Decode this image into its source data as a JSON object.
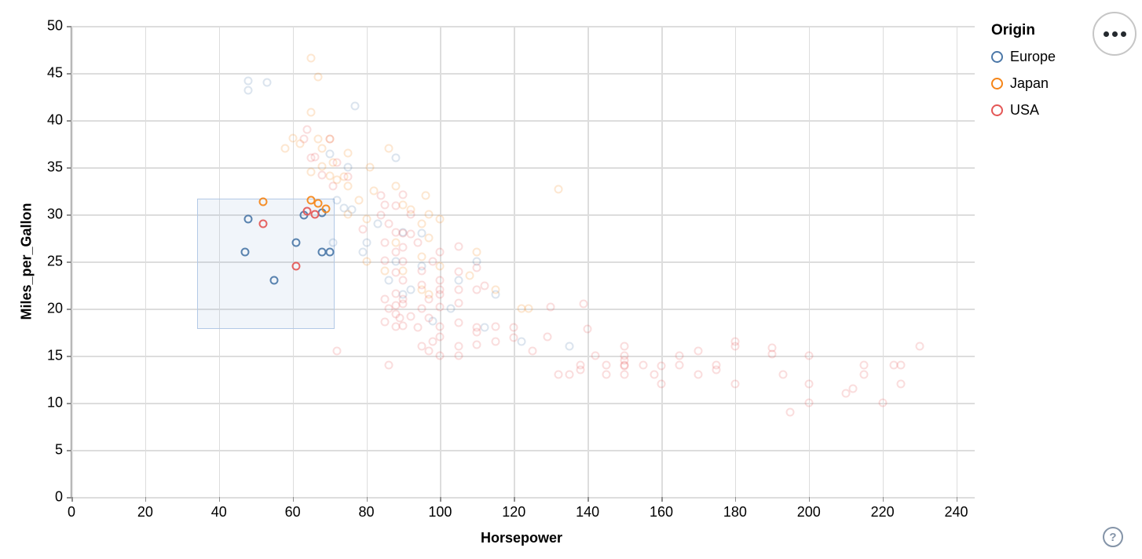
{
  "help_button": {
    "glyph": "?"
  },
  "menu_button": {
    "icon": "ellipsis-icon"
  },
  "chart_data": {
    "type": "scatter",
    "xlabel": "Horsepower",
    "ylabel": "Miles_per_Gallon",
    "x_domain": [
      0,
      245
    ],
    "y_domain": [
      0,
      50
    ],
    "x_ticks": [
      0,
      20,
      40,
      60,
      80,
      100,
      120,
      140,
      160,
      180,
      200,
      220,
      240
    ],
    "y_ticks": [
      0,
      5,
      10,
      15,
      20,
      25,
      30,
      35,
      40,
      45,
      50
    ],
    "grid": true,
    "legend": {
      "title": "Origin",
      "position": "top-right",
      "entries": [
        {
          "label": "Europe",
          "color": "#4c78a8"
        },
        {
          "label": "Japan",
          "color": "#f58518"
        },
        {
          "label": "USA",
          "color": "#e45756"
        }
      ]
    },
    "brush": {
      "x": [
        34,
        71
      ],
      "y": [
        18,
        31.7
      ]
    },
    "point_style": {
      "opacity_selected": 0.92,
      "opacity_unselected": 0.2,
      "stroke_width": 2.6,
      "size": 12
    },
    "series": [
      {
        "name": "Europe",
        "color": "#4c78a8",
        "selected": [
          [
            48,
            29.5
          ],
          [
            47,
            26
          ],
          [
            61,
            27
          ],
          [
            68,
            26
          ],
          [
            70,
            26
          ],
          [
            55,
            23
          ],
          [
            63,
            29.9
          ],
          [
            68,
            30.2
          ]
        ],
        "unselected": [
          [
            48,
            44.2
          ],
          [
            53,
            44
          ],
          [
            48,
            43.2
          ],
          [
            77,
            41.5
          ],
          [
            70,
            36.4
          ],
          [
            88,
            36
          ],
          [
            75,
            35
          ],
          [
            72,
            31.5
          ],
          [
            74,
            30.7
          ],
          [
            76,
            30.5
          ],
          [
            83,
            29
          ],
          [
            90,
            28.1
          ],
          [
            95,
            28
          ],
          [
            88,
            25
          ],
          [
            95,
            24.5
          ],
          [
            110,
            25
          ],
          [
            105,
            23
          ],
          [
            90,
            21.5
          ],
          [
            115,
            21.5
          ],
          [
            112,
            18
          ],
          [
            122,
            16.5
          ],
          [
            135,
            16
          ],
          [
            103,
            20
          ],
          [
            98,
            18.7
          ],
          [
            80,
            27
          ],
          [
            79,
            26
          ],
          [
            71,
            27
          ],
          [
            86,
            23
          ],
          [
            92,
            22
          ]
        ]
      },
      {
        "name": "Japan",
        "color": "#f58518",
        "selected": [
          [
            52,
            31.3
          ],
          [
            65,
            31.5
          ],
          [
            67,
            31.2
          ],
          [
            69,
            30.6
          ]
        ],
        "unselected": [
          [
            65,
            46.6
          ],
          [
            67,
            44.6
          ],
          [
            65,
            40.8
          ],
          [
            60,
            38.1
          ],
          [
            62,
            37.5
          ],
          [
            58,
            37
          ],
          [
            67,
            38
          ],
          [
            68,
            37
          ],
          [
            70,
            38
          ],
          [
            75,
            36.5
          ],
          [
            71,
            35.5
          ],
          [
            68,
            35.1
          ],
          [
            65,
            34.5
          ],
          [
            70,
            34.1
          ],
          [
            72,
            33.7
          ],
          [
            74,
            34
          ],
          [
            88,
            33
          ],
          [
            75,
            33
          ],
          [
            96,
            32
          ],
          [
            90,
            31
          ],
          [
            92,
            30.5
          ],
          [
            97,
            30
          ],
          [
            75,
            30
          ],
          [
            80,
            29.5
          ],
          [
            95,
            29
          ],
          [
            100,
            29.5
          ],
          [
            97,
            27.5
          ],
          [
            88,
            27
          ],
          [
            110,
            26
          ],
          [
            95,
            25.5
          ],
          [
            100,
            24.5
          ],
          [
            108,
            23.5
          ],
          [
            95,
            22
          ],
          [
            97,
            21.5
          ],
          [
            115,
            22
          ],
          [
            122,
            20
          ],
          [
            124,
            20
          ],
          [
            132,
            32.7
          ],
          [
            90,
            24
          ],
          [
            85,
            24
          ],
          [
            80,
            25
          ],
          [
            78,
            31.5
          ],
          [
            82,
            32.5
          ],
          [
            86,
            37
          ],
          [
            81,
            35
          ]
        ]
      },
      {
        "name": "USA",
        "color": "#e45756",
        "selected": [
          [
            52,
            29
          ],
          [
            61,
            24.5
          ],
          [
            64,
            30.3
          ],
          [
            66,
            30
          ]
        ],
        "unselected": [
          [
            64,
            39
          ],
          [
            66,
            36.1
          ],
          [
            63,
            38
          ],
          [
            70,
            38
          ],
          [
            65,
            36
          ],
          [
            72,
            35.5
          ],
          [
            68,
            34.2
          ],
          [
            75,
            34
          ],
          [
            71,
            33
          ],
          [
            84,
            32
          ],
          [
            90,
            32.1
          ],
          [
            85,
            31
          ],
          [
            88,
            30.9
          ],
          [
            92,
            30
          ],
          [
            84,
            29.9
          ],
          [
            86,
            29
          ],
          [
            79,
            28.4
          ],
          [
            88,
            28.1
          ],
          [
            90,
            28
          ],
          [
            92,
            27.9
          ],
          [
            94,
            27
          ],
          [
            85,
            27
          ],
          [
            90,
            26.5
          ],
          [
            88,
            26
          ],
          [
            100,
            26
          ],
          [
            105,
            26.6
          ],
          [
            85,
            25.1
          ],
          [
            90,
            25
          ],
          [
            98,
            25
          ],
          [
            110,
            24.3
          ],
          [
            95,
            24
          ],
          [
            105,
            23.9
          ],
          [
            88,
            23.8
          ],
          [
            100,
            23
          ],
          [
            90,
            23
          ],
          [
            112,
            22.4
          ],
          [
            110,
            22
          ],
          [
            105,
            22
          ],
          [
            100,
            22
          ],
          [
            95,
            22.5
          ],
          [
            88,
            21.6
          ],
          [
            85,
            21
          ],
          [
            90,
            21
          ],
          [
            97,
            21
          ],
          [
            100,
            21.5
          ],
          [
            105,
            20.6
          ],
          [
            88,
            20.3
          ],
          [
            86,
            20
          ],
          [
            90,
            20.5
          ],
          [
            95,
            20
          ],
          [
            100,
            20.2
          ],
          [
            88,
            19.4
          ],
          [
            92,
            19.2
          ],
          [
            97,
            19
          ],
          [
            89,
            19
          ],
          [
            85,
            18.6
          ],
          [
            90,
            18.2
          ],
          [
            88,
            18.1
          ],
          [
            94,
            18
          ],
          [
            100,
            18.1
          ],
          [
            105,
            18.5
          ],
          [
            110,
            18
          ],
          [
            115,
            18.1
          ],
          [
            120,
            18
          ],
          [
            110,
            17.5
          ],
          [
            100,
            17
          ],
          [
            98,
            16.5
          ],
          [
            95,
            16
          ],
          [
            105,
            16
          ],
          [
            110,
            16.2
          ],
          [
            115,
            16.5
          ],
          [
            120,
            16.9
          ],
          [
            125,
            15.5
          ],
          [
            72,
            15.5
          ],
          [
            86,
            14
          ],
          [
            100,
            15
          ],
          [
            105,
            15
          ],
          [
            97,
            15.5
          ],
          [
            130,
            20.2
          ],
          [
            139,
            20.5
          ],
          [
            129,
            17
          ],
          [
            140,
            17.8
          ],
          [
            142,
            15
          ],
          [
            145,
            14
          ],
          [
            138,
            14
          ],
          [
            135,
            13
          ],
          [
            132,
            13
          ],
          [
            138,
            13.5
          ],
          [
            145,
            13
          ],
          [
            150,
            16
          ],
          [
            150,
            15
          ],
          [
            150,
            14.5
          ],
          [
            150,
            14
          ],
          [
            150,
            13.9
          ],
          [
            150,
            13
          ],
          [
            155,
            14
          ],
          [
            158,
            13
          ],
          [
            160,
            13.9
          ],
          [
            165,
            15
          ],
          [
            165,
            14
          ],
          [
            170,
            15.5
          ],
          [
            170,
            13
          ],
          [
            175,
            14
          ],
          [
            175,
            13.5
          ],
          [
            180,
            16.5
          ],
          [
            180,
            16
          ],
          [
            180,
            12
          ],
          [
            160,
            12
          ],
          [
            190,
            15.8
          ],
          [
            190,
            15.2
          ],
          [
            200,
            15
          ],
          [
            193,
            13
          ],
          [
            200,
            12
          ],
          [
            200,
            10
          ],
          [
            195,
            9
          ],
          [
            210,
            11
          ],
          [
            212,
            11.5
          ],
          [
            215,
            14
          ],
          [
            215,
            13
          ],
          [
            220,
            10
          ],
          [
            223,
            14
          ],
          [
            225,
            14
          ],
          [
            225,
            12
          ],
          [
            230,
            16
          ]
        ]
      }
    ]
  }
}
